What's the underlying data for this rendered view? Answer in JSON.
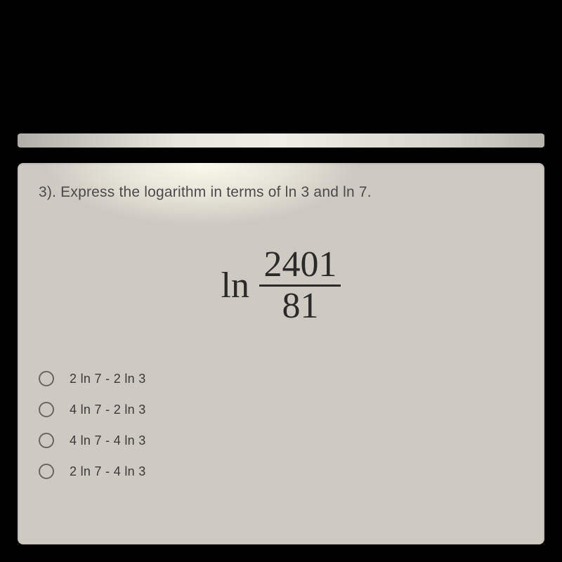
{
  "question": {
    "number": "3).",
    "prompt": "Express the logarithm in terms of ln 3 and ln 7."
  },
  "expression": {
    "operator": "ln",
    "numerator": "2401",
    "denominator": "81"
  },
  "options": [
    {
      "label": "2 ln 7 - 2 ln 3"
    },
    {
      "label": "4 ln 7 - 2 ln 3"
    },
    {
      "label": "4 ln 7 - 4 ln 3"
    },
    {
      "label": "2 ln 7 - 4 ln 3"
    }
  ],
  "style": {
    "page_bg": "#000000",
    "card_bg": "#cec9c1",
    "text_color": "#4a4a4a",
    "math_color": "#2a2a2a",
    "radio_border": "#6a6660",
    "question_fontsize": 21,
    "math_fontsize": 52,
    "option_fontsize": 18
  }
}
